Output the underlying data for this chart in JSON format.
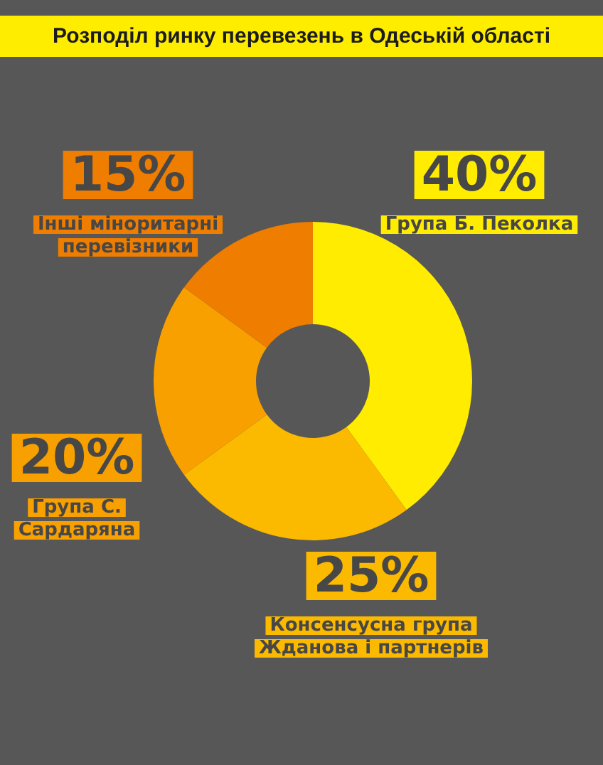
{
  "chart_data": {
    "type": "donut",
    "title": "Розподіл ринку перевезень в Одеській області",
    "categories": [
      "Група Б. Пеколка",
      "Консенсусна група Жданова і партнерів",
      "Група С. Сардаряна",
      "Інші міноритарні перевізники"
    ],
    "values": [
      40,
      25,
      20,
      15
    ],
    "colors": [
      "#ffec00",
      "#fbb900",
      "#f8a000",
      "#ee7d00"
    ],
    "value_labels": [
      "40%",
      "25%",
      "20%",
      "15%"
    ]
  }
}
